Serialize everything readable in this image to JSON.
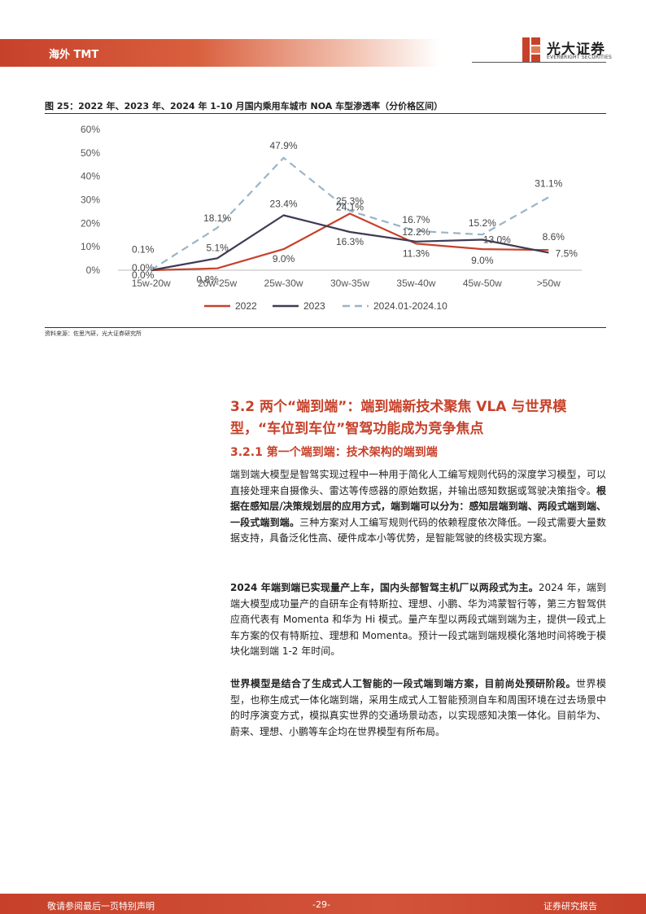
{
  "header": {
    "section_label": "海外 TMT",
    "logo_cn": "光大证券",
    "logo_en": "EVERBRIGHT SECURITIES",
    "brand_color": "#c7412a"
  },
  "figure": {
    "title": "图 25：2022 年、2023 年、2024 年 1-10 月国内乘用车城市 NOA 车型渗透率（分价格区间）",
    "source": "资料来源：佐思汽研，光大证券研究所"
  },
  "chart_data": {
    "type": "line",
    "categories": [
      "15w-20w",
      "20w-25w",
      "25w-30w",
      "30w-35w",
      "35w-40w",
      "45w-50w",
      ">50w"
    ],
    "ylim": [
      0,
      60
    ],
    "yticks": [
      "0%",
      "10%",
      "20%",
      "30%",
      "40%",
      "50%",
      "60%"
    ],
    "grid": false,
    "legend_position": "bottom",
    "series": [
      {
        "name": "2022",
        "color": "#c7412a",
        "dash": "solid",
        "values": [
          0.0,
          0.8,
          9.0,
          24.1,
          11.3,
          9.0,
          8.6
        ],
        "labels": [
          "0.0%",
          "0.8%",
          "9.0%",
          "24.1%",
          "11.3%",
          "9.0%",
          "8.6%"
        ]
      },
      {
        "name": "2023",
        "color": "#3e3a55",
        "dash": "solid",
        "values": [
          0.0,
          5.1,
          23.4,
          16.3,
          12.2,
          13.0,
          7.5
        ],
        "labels": [
          "0.0%",
          "5.1%",
          "23.4%",
          "16.3%",
          "12.2%",
          "13.0%",
          "7.5%"
        ]
      },
      {
        "name": "2024.01-2024.10",
        "color": "#9ab4c6",
        "dash": "dashed",
        "values": [
          0.1,
          18.1,
          47.9,
          25.3,
          16.7,
          15.2,
          31.1
        ],
        "labels": [
          "0.1%",
          "18.1%",
          "47.9%",
          "25.3%",
          "16.7%",
          "15.2%",
          "31.1%"
        ]
      }
    ]
  },
  "section": {
    "heading": "3.2 两个“端到端”：端到端新技术聚焦 VLA 与世界模型，“车位到车位”智驾功能成为竞争焦点",
    "subheading": "3.2.1 第一个端到端：技术架构的端到端",
    "p1_plain_a": "端到端大模型是智驾实现过程中一种用于简化人工编写规则代码的深度学习模型，可以直接处理来自摄像头、雷达等传感器的原始数据，并输出感知数据或驾驶决策指令。",
    "p1_bold": "根据在感知层/决策规划层的应用方式，端到端可以分为：感知层端到端、两段式端到端、一段式端到端。",
    "p1_plain_b": "三种方案对人工编写规则代码的依赖程度依次降低。一段式需要大量数据支持，具备泛化性高、硬件成本小等优势，是智能驾驶的终极实现方案。",
    "p2_bold": "2024 年端到端已实现量产上车，国内头部智驾主机厂以两段式为主。",
    "p2_plain": "2024 年，端到端大模型成功量产的自研车企有特斯拉、理想、小鹏、华为鸿蒙智行等，第三方智驾供应商代表有 Momenta 和华为 Hi 模式。量产车型以两段式端到端为主，提供一段式上车方案的仅有特斯拉、理想和 Momenta。预计一段式端到端规模化落地时间将晚于模块化端到端 1-2 年时间。",
    "p3_bold": "世界模型是结合了生成式人工智能的一段式端到端方案，目前尚处预研阶段。",
    "p3_plain": "世界模型，也称生成式一体化端到端，采用生成式人工智能预测自车和周围环境在过去场景中的时序演变方式，模拟真实世界的交通场景动态，以实现感知决策一体化。目前华为、蔚来、理想、小鹏等车企均在世界模型有所布局。"
  },
  "footer": {
    "left": "敬请参阅最后一页特别声明",
    "page": "-29-",
    "right": "证券研究报告"
  }
}
